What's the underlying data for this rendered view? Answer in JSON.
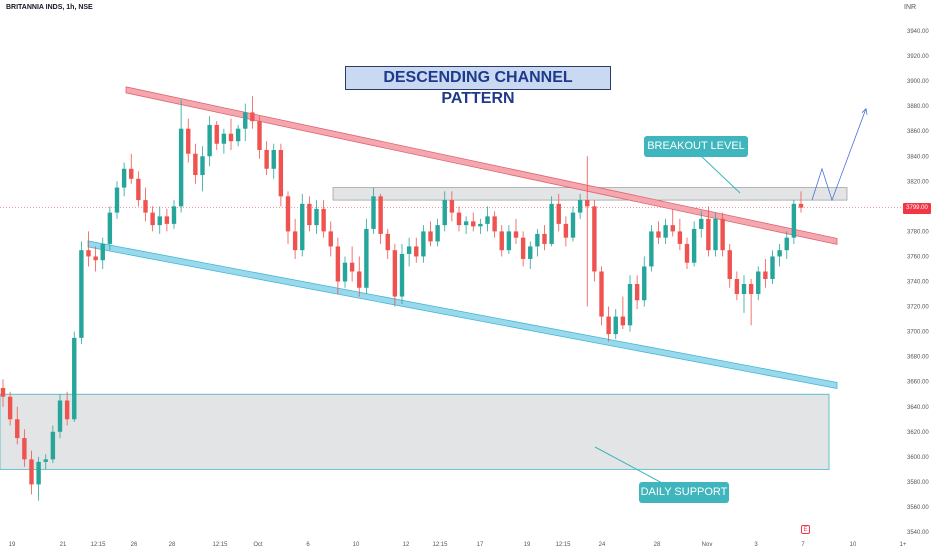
{
  "header": {
    "symbol": "BRITANNIA INDS, 1h, NSE",
    "currency": "INR"
  },
  "annotations": {
    "title": "DESCENDING CHANNEL PATTERN",
    "breakout": "BREAKOUT LEVEL",
    "support": "DAILY SUPPORT",
    "price_tag": "3799.00",
    "earnings_badge": "E"
  },
  "colors": {
    "up": "#26a69a",
    "down": "#ef5350",
    "upper_channel": "#f4a7ae",
    "lower_channel": "#9ad8ec",
    "zone": "#e3e4e6",
    "zone_border": "#3fb5bd",
    "projection": "#4a6fd8"
  },
  "chart_data": {
    "type": "candlestick",
    "title": "DESCENDING CHANNEL PATTERN",
    "xlabel": "",
    "ylabel": "",
    "ylim": [
      3540,
      3950
    ],
    "y_ticks": [
      "3940.00",
      "3920.00",
      "3900.00",
      "3880.00",
      "3860.00",
      "3840.00",
      "3820.00",
      "3800.00",
      "3780.00",
      "3760.00",
      "3740.00",
      "3720.00",
      "3700.00",
      "3680.00",
      "3660.00",
      "3640.00",
      "3620.00",
      "3600.00",
      "3580.00",
      "3560.00",
      "3540.00"
    ],
    "x_ticks": [
      "19",
      "21",
      "12:15",
      "26",
      "28",
      "12:15",
      "Oct",
      "6",
      "10",
      "12",
      "12:15",
      "17",
      "19",
      "12:15",
      "24",
      "28",
      "Nov",
      "3",
      "7",
      "10",
      "1+"
    ],
    "last_price": 3799.0,
    "breakout_zone": [
      3805,
      3815
    ],
    "daily_support_zone": [
      3590,
      3650
    ],
    "upper_channel": {
      "start_price": 3893,
      "end_price": 3772
    },
    "lower_channel": {
      "start_price": 3770,
      "end_price": 3657
    },
    "projection": [
      3805,
      3830,
      3805,
      3878
    ],
    "candles": [
      {
        "o": 3655,
        "h": 3662,
        "l": 3640,
        "c": 3648
      },
      {
        "o": 3648,
        "h": 3652,
        "l": 3625,
        "c": 3630
      },
      {
        "o": 3630,
        "h": 3640,
        "l": 3610,
        "c": 3615
      },
      {
        "o": 3615,
        "h": 3622,
        "l": 3592,
        "c": 3598
      },
      {
        "o": 3598,
        "h": 3605,
        "l": 3570,
        "c": 3578
      },
      {
        "o": 3578,
        "h": 3600,
        "l": 3565,
        "c": 3596
      },
      {
        "o": 3596,
        "h": 3602,
        "l": 3590,
        "c": 3598
      },
      {
        "o": 3598,
        "h": 3625,
        "l": 3595,
        "c": 3620
      },
      {
        "o": 3620,
        "h": 3650,
        "l": 3615,
        "c": 3645
      },
      {
        "o": 3645,
        "h": 3652,
        "l": 3625,
        "c": 3630
      },
      {
        "o": 3630,
        "h": 3700,
        "l": 3628,
        "c": 3695
      },
      {
        "o": 3695,
        "h": 3772,
        "l": 3690,
        "c": 3765
      },
      {
        "o": 3765,
        "h": 3780,
        "l": 3752,
        "c": 3760
      },
      {
        "o": 3760,
        "h": 3768,
        "l": 3748,
        "c": 3757
      },
      {
        "o": 3757,
        "h": 3775,
        "l": 3750,
        "c": 3770
      },
      {
        "o": 3770,
        "h": 3800,
        "l": 3765,
        "c": 3795
      },
      {
        "o": 3795,
        "h": 3820,
        "l": 3790,
        "c": 3815
      },
      {
        "o": 3815,
        "h": 3835,
        "l": 3808,
        "c": 3830
      },
      {
        "o": 3830,
        "h": 3842,
        "l": 3818,
        "c": 3822
      },
      {
        "o": 3822,
        "h": 3828,
        "l": 3800,
        "c": 3805
      },
      {
        "o": 3805,
        "h": 3815,
        "l": 3788,
        "c": 3795
      },
      {
        "o": 3795,
        "h": 3800,
        "l": 3780,
        "c": 3785
      },
      {
        "o": 3785,
        "h": 3800,
        "l": 3778,
        "c": 3792
      },
      {
        "o": 3792,
        "h": 3798,
        "l": 3780,
        "c": 3786
      },
      {
        "o": 3786,
        "h": 3805,
        "l": 3782,
        "c": 3800
      },
      {
        "o": 3800,
        "h": 3885,
        "l": 3795,
        "c": 3862
      },
      {
        "o": 3862,
        "h": 3870,
        "l": 3835,
        "c": 3842
      },
      {
        "o": 3842,
        "h": 3850,
        "l": 3818,
        "c": 3825
      },
      {
        "o": 3825,
        "h": 3848,
        "l": 3812,
        "c": 3840
      },
      {
        "o": 3840,
        "h": 3872,
        "l": 3832,
        "c": 3865
      },
      {
        "o": 3865,
        "h": 3868,
        "l": 3845,
        "c": 3850
      },
      {
        "o": 3850,
        "h": 3862,
        "l": 3842,
        "c": 3858
      },
      {
        "o": 3858,
        "h": 3870,
        "l": 3845,
        "c": 3852
      },
      {
        "o": 3852,
        "h": 3865,
        "l": 3848,
        "c": 3862
      },
      {
        "o": 3862,
        "h": 3882,
        "l": 3852,
        "c": 3875
      },
      {
        "o": 3875,
        "h": 3888,
        "l": 3862,
        "c": 3868
      },
      {
        "o": 3868,
        "h": 3872,
        "l": 3838,
        "c": 3845
      },
      {
        "o": 3845,
        "h": 3852,
        "l": 3825,
        "c": 3830
      },
      {
        "o": 3830,
        "h": 3850,
        "l": 3822,
        "c": 3845
      },
      {
        "o": 3845,
        "h": 3850,
        "l": 3800,
        "c": 3808
      },
      {
        "o": 3808,
        "h": 3812,
        "l": 3770,
        "c": 3780
      },
      {
        "o": 3780,
        "h": 3790,
        "l": 3758,
        "c": 3765
      },
      {
        "o": 3765,
        "h": 3810,
        "l": 3760,
        "c": 3802
      },
      {
        "o": 3802,
        "h": 3808,
        "l": 3780,
        "c": 3785
      },
      {
        "o": 3785,
        "h": 3805,
        "l": 3778,
        "c": 3798
      },
      {
        "o": 3798,
        "h": 3805,
        "l": 3775,
        "c": 3780
      },
      {
        "o": 3780,
        "h": 3788,
        "l": 3760,
        "c": 3768
      },
      {
        "o": 3768,
        "h": 3775,
        "l": 3730,
        "c": 3740
      },
      {
        "o": 3740,
        "h": 3760,
        "l": 3735,
        "c": 3755
      },
      {
        "o": 3755,
        "h": 3768,
        "l": 3740,
        "c": 3748
      },
      {
        "o": 3748,
        "h": 3760,
        "l": 3728,
        "c": 3735
      },
      {
        "o": 3735,
        "h": 3790,
        "l": 3730,
        "c": 3782
      },
      {
        "o": 3782,
        "h": 3815,
        "l": 3778,
        "c": 3808
      },
      {
        "o": 3808,
        "h": 3810,
        "l": 3770,
        "c": 3778
      },
      {
        "o": 3778,
        "h": 3782,
        "l": 3758,
        "c": 3765
      },
      {
        "o": 3765,
        "h": 3770,
        "l": 3720,
        "c": 3728
      },
      {
        "o": 3728,
        "h": 3770,
        "l": 3722,
        "c": 3762
      },
      {
        "o": 3762,
        "h": 3775,
        "l": 3752,
        "c": 3768
      },
      {
        "o": 3768,
        "h": 3775,
        "l": 3755,
        "c": 3760
      },
      {
        "o": 3760,
        "h": 3785,
        "l": 3755,
        "c": 3780
      },
      {
        "o": 3780,
        "h": 3788,
        "l": 3768,
        "c": 3772
      },
      {
        "o": 3772,
        "h": 3790,
        "l": 3768,
        "c": 3785
      },
      {
        "o": 3785,
        "h": 3812,
        "l": 3780,
        "c": 3805
      },
      {
        "o": 3805,
        "h": 3812,
        "l": 3788,
        "c": 3795
      },
      {
        "o": 3795,
        "h": 3800,
        "l": 3780,
        "c": 3785
      },
      {
        "o": 3785,
        "h": 3792,
        "l": 3778,
        "c": 3788
      },
      {
        "o": 3788,
        "h": 3795,
        "l": 3780,
        "c": 3784
      },
      {
        "o": 3784,
        "h": 3790,
        "l": 3778,
        "c": 3786
      },
      {
        "o": 3786,
        "h": 3800,
        "l": 3780,
        "c": 3792
      },
      {
        "o": 3792,
        "h": 3796,
        "l": 3775,
        "c": 3780
      },
      {
        "o": 3780,
        "h": 3785,
        "l": 3760,
        "c": 3765
      },
      {
        "o": 3765,
        "h": 3785,
        "l": 3762,
        "c": 3780
      },
      {
        "o": 3780,
        "h": 3790,
        "l": 3770,
        "c": 3775
      },
      {
        "o": 3775,
        "h": 3780,
        "l": 3752,
        "c": 3758
      },
      {
        "o": 3758,
        "h": 3772,
        "l": 3750,
        "c": 3768
      },
      {
        "o": 3768,
        "h": 3782,
        "l": 3760,
        "c": 3778
      },
      {
        "o": 3778,
        "h": 3785,
        "l": 3765,
        "c": 3770
      },
      {
        "o": 3770,
        "h": 3808,
        "l": 3768,
        "c": 3802
      },
      {
        "o": 3802,
        "h": 3810,
        "l": 3780,
        "c": 3786
      },
      {
        "o": 3786,
        "h": 3792,
        "l": 3768,
        "c": 3775
      },
      {
        "o": 3775,
        "h": 3800,
        "l": 3772,
        "c": 3795
      },
      {
        "o": 3795,
        "h": 3810,
        "l": 3790,
        "c": 3805
      },
      {
        "o": 3805,
        "h": 3840,
        "l": 3720,
        "c": 3800
      },
      {
        "o": 3800,
        "h": 3805,
        "l": 3740,
        "c": 3748
      },
      {
        "o": 3748,
        "h": 3752,
        "l": 3705,
        "c": 3712
      },
      {
        "o": 3712,
        "h": 3720,
        "l": 3692,
        "c": 3698
      },
      {
        "o": 3698,
        "h": 3718,
        "l": 3694,
        "c": 3712
      },
      {
        "o": 3712,
        "h": 3728,
        "l": 3702,
        "c": 3705
      },
      {
        "o": 3705,
        "h": 3745,
        "l": 3700,
        "c": 3738
      },
      {
        "o": 3738,
        "h": 3745,
        "l": 3718,
        "c": 3725
      },
      {
        "o": 3725,
        "h": 3760,
        "l": 3720,
        "c": 3752
      },
      {
        "o": 3752,
        "h": 3785,
        "l": 3748,
        "c": 3780
      },
      {
        "o": 3780,
        "h": 3788,
        "l": 3770,
        "c": 3775
      },
      {
        "o": 3775,
        "h": 3790,
        "l": 3770,
        "c": 3785
      },
      {
        "o": 3785,
        "h": 3798,
        "l": 3776,
        "c": 3780
      },
      {
        "o": 3780,
        "h": 3790,
        "l": 3765,
        "c": 3770
      },
      {
        "o": 3770,
        "h": 3775,
        "l": 3750,
        "c": 3755
      },
      {
        "o": 3755,
        "h": 3788,
        "l": 3752,
        "c": 3782
      },
      {
        "o": 3782,
        "h": 3796,
        "l": 3775,
        "c": 3790
      },
      {
        "o": 3790,
        "h": 3800,
        "l": 3760,
        "c": 3765
      },
      {
        "o": 3765,
        "h": 3795,
        "l": 3760,
        "c": 3790
      },
      {
        "o": 3790,
        "h": 3795,
        "l": 3760,
        "c": 3765
      },
      {
        "o": 3765,
        "h": 3770,
        "l": 3735,
        "c": 3742
      },
      {
        "o": 3742,
        "h": 3748,
        "l": 3725,
        "c": 3730
      },
      {
        "o": 3730,
        "h": 3745,
        "l": 3715,
        "c": 3738
      },
      {
        "o": 3738,
        "h": 3742,
        "l": 3705,
        "c": 3730
      },
      {
        "o": 3730,
        "h": 3752,
        "l": 3725,
        "c": 3748
      },
      {
        "o": 3748,
        "h": 3758,
        "l": 3735,
        "c": 3742
      },
      {
        "o": 3742,
        "h": 3765,
        "l": 3738,
        "c": 3760
      },
      {
        "o": 3760,
        "h": 3770,
        "l": 3752,
        "c": 3765
      },
      {
        "o": 3765,
        "h": 3780,
        "l": 3758,
        "c": 3775
      },
      {
        "o": 3775,
        "h": 3805,
        "l": 3770,
        "c": 3802
      },
      {
        "o": 3802,
        "h": 3812,
        "l": 3795,
        "c": 3799
      }
    ]
  }
}
